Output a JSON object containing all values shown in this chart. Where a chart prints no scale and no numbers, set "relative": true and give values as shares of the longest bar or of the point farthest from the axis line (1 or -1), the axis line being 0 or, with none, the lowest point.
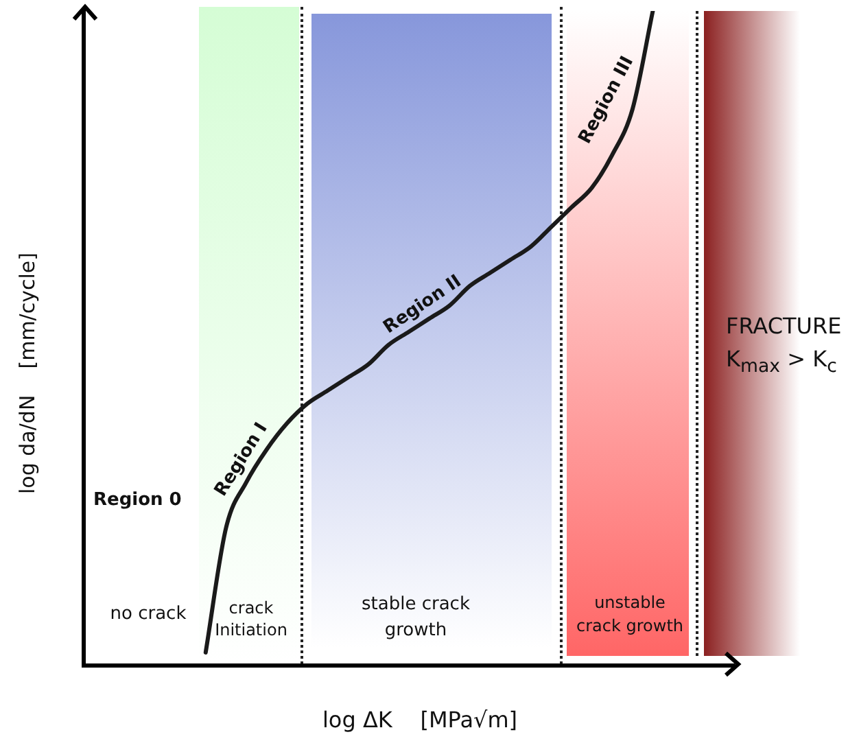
{
  "chart_data": {
    "type": "line",
    "relative": true,
    "xlabel": "log ΔK    [MPa√m]",
    "ylabel": "log da/dN    [mm/cycle]",
    "categories": [
      null,
      null,
      null,
      null,
      null,
      null,
      null,
      null,
      null,
      null,
      null,
      null,
      null,
      null,
      null,
      null,
      null,
      null,
      null,
      null,
      null,
      null,
      null,
      null,
      null,
      null,
      null,
      null,
      null,
      null,
      null,
      null,
      null
    ],
    "values": [
      null,
      null,
      null,
      null,
      null,
      null,
      0.02,
      0.21,
      0.28,
      0.33,
      0.37,
      0.4,
      0.42,
      0.44,
      0.46,
      0.49,
      0.51,
      0.53,
      0.55,
      0.58,
      0.6,
      0.62,
      0.64,
      0.67,
      0.7,
      0.73,
      0.78,
      0.85,
      1.0,
      null,
      null,
      null,
      null
    ],
    "color": "#1a1a1a",
    "marker": "none",
    "line_style": "solid",
    "annotations": [
      "Region 0",
      "Region I",
      "Region II",
      "Region III",
      "no crack",
      "crack Initiation",
      "stable crack growth",
      "unstable crack growth",
      "FRACTURE K$_{max}$ > K$_{c}$"
    ]
  }
}
